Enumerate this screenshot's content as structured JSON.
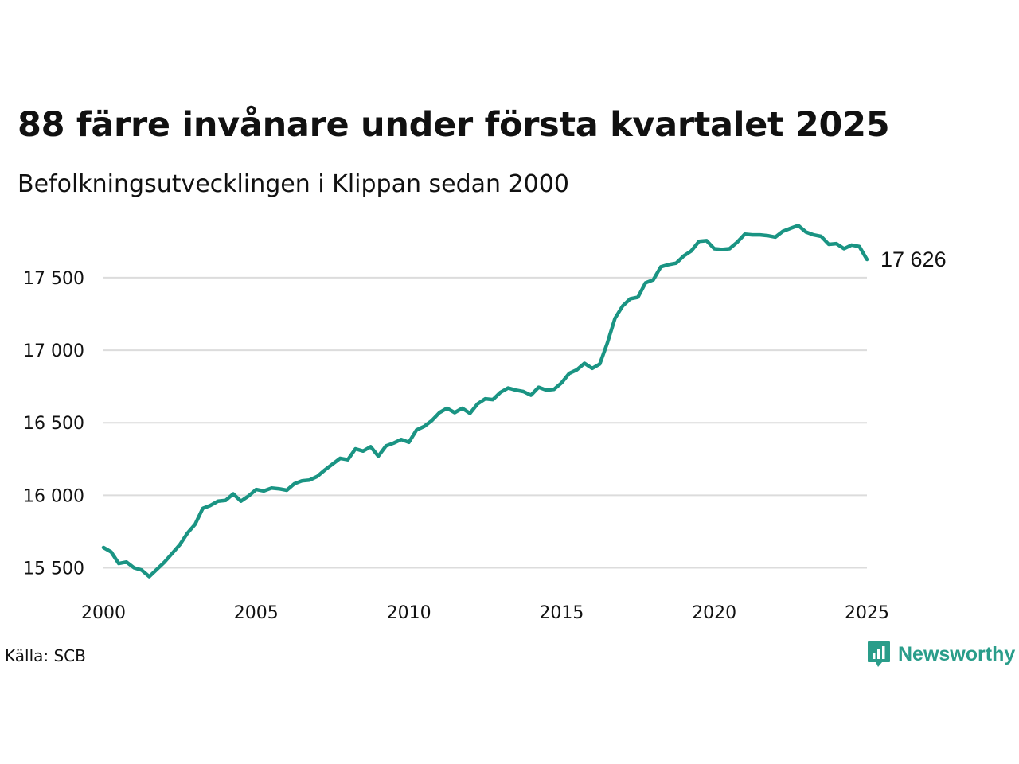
{
  "chart_data": {
    "type": "line",
    "title": "88 färre invånare under första kvartalet 2025",
    "subtitle": "Befolkningsutvecklingen i Klippan sedan 2000",
    "xlabel": "",
    "ylabel": "",
    "xlim": [
      2000,
      2025
    ],
    "ylim": [
      15300,
      17900
    ],
    "x_ticks": [
      2000,
      2005,
      2010,
      2015,
      2020,
      2025
    ],
    "x_tick_labels": [
      "2000",
      "2005",
      "2010",
      "2015",
      "2020",
      "2025"
    ],
    "y_ticks": [
      15500,
      16000,
      16500,
      17000,
      17500
    ],
    "y_tick_labels": [
      "15 500",
      "16 000",
      "16 500",
      "17 000",
      "17 500"
    ],
    "grid": true,
    "line_color": "#1a9483",
    "end_label": "17 626",
    "series": [
      {
        "x": [
          2000.0,
          2000.25,
          2000.5,
          2000.75,
          2001.0,
          2001.25,
          2001.5,
          2001.75,
          2002.0,
          2002.25,
          2002.5,
          2002.75,
          2003.0,
          2003.25,
          2003.5,
          2003.75,
          2004.0,
          2004.25,
          2004.5,
          2004.75,
          2005.0,
          2005.25,
          2005.5,
          2005.75,
          2006.0,
          2006.25,
          2006.5,
          2006.75,
          2007.0,
          2007.25,
          2007.5,
          2007.75,
          2008.0,
          2008.25,
          2008.5,
          2008.75,
          2009.0,
          2009.25,
          2009.5,
          2009.75,
          2010.0,
          2010.25,
          2010.5,
          2010.75,
          2011.0,
          2011.25,
          2011.5,
          2011.75,
          2012.0,
          2012.25,
          2012.5,
          2012.75,
          2013.0,
          2013.25,
          2013.5,
          2013.75,
          2014.0,
          2014.25,
          2014.5,
          2014.75,
          2015.0,
          2015.25,
          2015.5,
          2015.75,
          2016.0,
          2016.25,
          2016.5,
          2016.75,
          2017.0,
          2017.25,
          2017.5,
          2017.75,
          2018.0,
          2018.25,
          2018.5,
          2018.75,
          2019.0,
          2019.25,
          2019.5,
          2019.75,
          2020.0,
          2020.25,
          2020.5,
          2020.75,
          2021.0,
          2021.25,
          2021.5,
          2021.75,
          2022.0,
          2022.25,
          2022.5,
          2022.75,
          2023.0,
          2023.25,
          2023.5,
          2023.75,
          2024.0,
          2024.25,
          2024.5,
          2024.75,
          2025.0
        ],
        "y": [
          15640,
          15610,
          15530,
          15540,
          15500,
          15485,
          15440,
          15490,
          15540,
          15600,
          15660,
          15740,
          15800,
          15910,
          15930,
          15960,
          15965,
          16010,
          15960,
          15995,
          16040,
          16030,
          16050,
          16045,
          16035,
          16080,
          16100,
          16105,
          16130,
          16175,
          16215,
          16255,
          16245,
          16320,
          16305,
          16335,
          16270,
          16340,
          16360,
          16385,
          16365,
          16450,
          16475,
          16515,
          16570,
          16600,
          16570,
          16600,
          16565,
          16630,
          16665,
          16660,
          16710,
          16740,
          16725,
          16715,
          16690,
          16745,
          16725,
          16730,
          16775,
          16840,
          16865,
          16910,
          16875,
          16905,
          17050,
          17220,
          17305,
          17355,
          17365,
          17465,
          17485,
          17575,
          17590,
          17600,
          17650,
          17685,
          17750,
          17755,
          17700,
          17695,
          17700,
          17745,
          17800,
          17795,
          17795,
          17790,
          17780,
          17820,
          17840,
          17860,
          17815,
          17795,
          17785,
          17730,
          17735,
          17700,
          17725,
          17715,
          17626
        ]
      }
    ]
  },
  "source": "Källa: SCB",
  "brand": {
    "name": "Newsworthy",
    "color": "#2a9d8a",
    "icon": "newsworthy-logo-icon"
  }
}
